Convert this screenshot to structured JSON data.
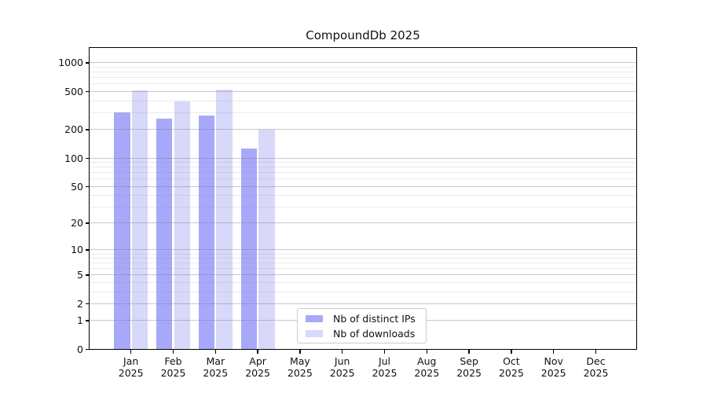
{
  "chart_data": {
    "type": "bar",
    "title": "CompoundDb 2025",
    "year_label": "2025",
    "categories": [
      "Jan",
      "Feb",
      "Mar",
      "Apr",
      "May",
      "Jun",
      "Jul",
      "Aug",
      "Sep",
      "Oct",
      "Nov",
      "Dec"
    ],
    "series": [
      {
        "name": "Nb of distinct IPs",
        "color": "#a8a8fa",
        "values": [
          300,
          258,
          277,
          124,
          0,
          0,
          0,
          0,
          0,
          0,
          0,
          0
        ]
      },
      {
        "name": "Nb of downloads",
        "color": "#d8d8fa",
        "values": [
          508,
          388,
          515,
          198,
          0,
          0,
          0,
          0,
          0,
          0,
          0,
          0
        ]
      }
    ],
    "y_scale": "log1p",
    "y_ticks": [
      0,
      1,
      2,
      5,
      10,
      20,
      50,
      100,
      200,
      500,
      1000
    ],
    "y_minor_ticks": [
      3,
      4,
      6,
      7,
      8,
      9,
      30,
      40,
      60,
      70,
      80,
      90,
      300,
      400,
      600,
      700,
      800,
      900
    ],
    "ylim": [
      0,
      1400
    ],
    "xlabel": "",
    "ylabel": "",
    "grid": "horizontal",
    "legend_position": "lower-center"
  },
  "colors": {
    "background": "#ffffff",
    "axis": "#000000",
    "major_grid": "#c9c9c9",
    "minor_grid": "#ececec",
    "text": "#111111"
  }
}
